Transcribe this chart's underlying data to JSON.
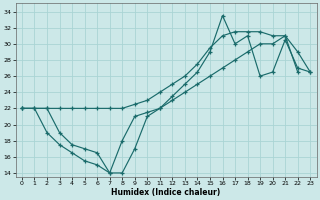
{
  "xlabel": "Humidex (Indice chaleur)",
  "bg_color": "#cce8e8",
  "grid_color": "#aad4d4",
  "line_color": "#1a6b6b",
  "xlim": [
    -0.5,
    23.5
  ],
  "ylim": [
    13.5,
    35
  ],
  "xticks": [
    0,
    1,
    2,
    3,
    4,
    5,
    6,
    7,
    8,
    9,
    10,
    11,
    12,
    13,
    14,
    15,
    16,
    17,
    18,
    19,
    20,
    21,
    22,
    23
  ],
  "yticks": [
    14,
    16,
    18,
    20,
    22,
    24,
    26,
    28,
    30,
    32,
    34
  ],
  "line1_x": [
    0,
    1,
    2,
    3,
    4,
    5,
    6,
    7,
    8,
    9,
    10,
    11,
    12,
    13,
    14,
    15,
    16,
    17,
    18,
    19,
    20,
    21,
    22
  ],
  "line1_y": [
    22,
    22,
    19,
    17.5,
    16.5,
    15.5,
    15,
    14,
    18,
    21,
    21.5,
    22,
    23,
    24,
    25,
    26,
    27,
    28,
    29,
    30,
    30,
    31,
    26.5
  ],
  "line2_x": [
    0,
    2,
    3,
    4,
    5,
    6,
    7,
    8,
    9,
    10,
    11,
    12,
    13,
    14,
    15,
    16,
    17,
    18,
    19,
    20,
    21,
    22,
    23
  ],
  "line2_y": [
    22,
    22,
    19,
    17.5,
    17,
    16.5,
    14,
    14,
    17,
    21,
    22,
    23.5,
    25,
    26.5,
    29,
    33.5,
    30,
    31,
    26,
    26.5,
    30.5,
    27,
    26.5
  ],
  "line3_x": [
    0,
    1,
    2,
    3,
    4,
    5,
    6,
    7,
    8,
    9,
    10,
    11,
    12,
    13,
    14,
    15,
    16,
    17,
    18,
    19,
    20,
    21,
    22,
    23
  ],
  "line3_y": [
    22,
    22,
    22,
    22,
    22,
    22,
    22,
    22,
    22,
    22.5,
    23,
    24,
    25,
    26,
    27.5,
    29.5,
    31,
    31.5,
    31.5,
    31.5,
    31,
    31,
    29,
    26.5
  ]
}
